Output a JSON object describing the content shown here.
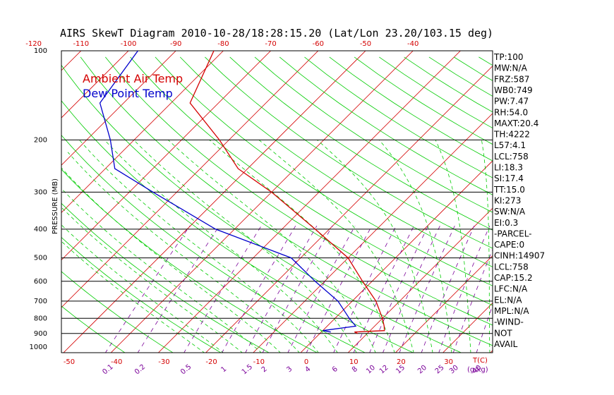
{
  "chart_data": {
    "type": "line",
    "title": "AIRS SkewT Diagram 2010-10-28/18:28:15.20 (Lat/Lon 23.20/103.15 deg)",
    "ylabel": "PRESSURE (MB)",
    "xlabel": "T(C)",
    "mixing_ratio_label": "(g/kg)",
    "ylim": [
      1000,
      100
    ],
    "y_scale": "log",
    "pressure_ticks": [
      "100",
      "200",
      "300",
      "400",
      "500",
      "600",
      "700",
      "800",
      "900",
      "1000"
    ],
    "pressure_gridlines": [
      200,
      300,
      400,
      500,
      600,
      700,
      800,
      900
    ],
    "top_temp_ticks": [
      "-120",
      "-110",
      "-100",
      "-90",
      "-80",
      "-70",
      "-60",
      "-50",
      "-40"
    ],
    "bottom_temp_ticks": [
      "-50",
      "-40",
      "-30",
      "-20",
      "-10",
      "0",
      "10",
      "20",
      "30"
    ],
    "mixing_ratio_ticks": [
      "0.1",
      "0.2",
      "0.5",
      "1",
      "1.5",
      "2",
      "3",
      "4",
      "6",
      "8",
      "10",
      "12",
      "15",
      "20",
      "25",
      "30",
      "40"
    ],
    "series": [
      {
        "name": "Ambient Air Temp",
        "color": "#d40000",
        "points": [
          {
            "p": 100,
            "t": -82
          },
          {
            "p": 150,
            "t": -76
          },
          {
            "p": 200,
            "t": -62
          },
          {
            "p": 250,
            "t": -52
          },
          {
            "p": 300,
            "t": -40
          },
          {
            "p": 400,
            "t": -23
          },
          {
            "p": 500,
            "t": -10
          },
          {
            "p": 600,
            "t": -2
          },
          {
            "p": 700,
            "t": 5
          },
          {
            "p": 800,
            "t": 10
          },
          {
            "p": 850,
            "t": 12
          },
          {
            "p": 880,
            "t": 13
          },
          {
            "p": 890,
            "t": 7
          },
          {
            "p": 900,
            "t": 8
          }
        ]
      },
      {
        "name": "Dew Point Temp",
        "color": "#0000cc",
        "points": [
          {
            "p": 100,
            "t": -98
          },
          {
            "p": 150,
            "t": -95
          },
          {
            "p": 200,
            "t": -85
          },
          {
            "p": 250,
            "t": -78
          },
          {
            "p": 300,
            "t": -65
          },
          {
            "p": 400,
            "t": -44
          },
          {
            "p": 500,
            "t": -22
          },
          {
            "p": 600,
            "t": -12
          },
          {
            "p": 700,
            "t": -3
          },
          {
            "p": 800,
            "t": 3
          },
          {
            "p": 850,
            "t": 6
          },
          {
            "p": 880,
            "t": 0
          },
          {
            "p": 890,
            "t": 2
          }
        ]
      }
    ]
  },
  "stats": [
    "TP:100",
    "MW:N/A",
    "FRZ:587",
    "WB0:749",
    "PW:7.47",
    "RH:54.0",
    "MAXT:20.4",
    "TH:4222",
    "L57:4.1",
    "LCL:758",
    "LI:18.3",
    "SI:17.4",
    "TT:15.0",
    "KI:273",
    "SW:N/A",
    "EI:0.3",
    "-PARCEL-",
    "CAPE:0",
    "CINH:14907",
    "LCL:758",
    "CAP:15.2",
    "LFC:N/A",
    "EL:N/A",
    "MPL:N/A",
    "-WIND-",
    "NOT",
    "AVAIL"
  ],
  "colors": {
    "isotherm": "#d40000",
    "dry_adiabat": "#00cc00",
    "moist_adiabat": "#00cc00",
    "mixing_ratio": "#7a0099",
    "grid": "#000000",
    "top_ticks": "#d40000",
    "bottom_ticks": "#d40000"
  }
}
